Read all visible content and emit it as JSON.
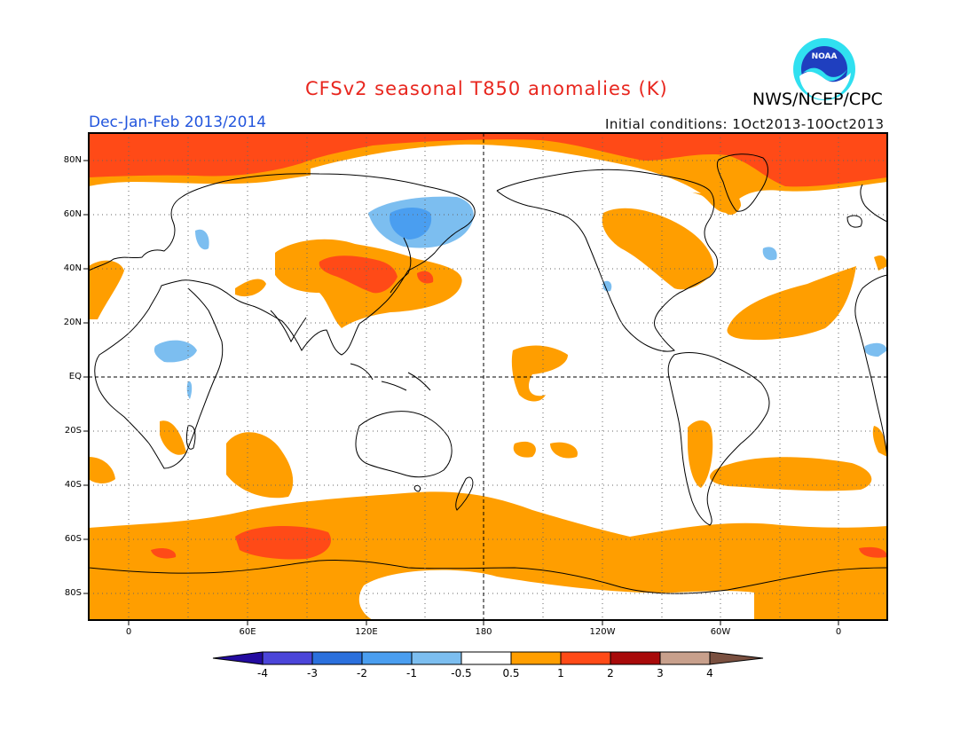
{
  "title": "CFSv2 seasonal T850 anomalies (K)",
  "season": "Dec-Jan-Feb 2013/2014",
  "initial_conditions": "Initial conditions: 1Oct2013-10Oct2013",
  "agency": "NWS/NCEP/CPC",
  "logo": {
    "text": "NOAA",
    "icon": "noaa-logo-icon",
    "colors": {
      "outer": "#30e0f0",
      "inner": "#1f3fbf",
      "bird": "#ffffff"
    }
  },
  "lat_labels": [
    "80N",
    "60N",
    "40N",
    "20N",
    "EQ",
    "20S",
    "40S",
    "60S",
    "80S"
  ],
  "lon_labels": [
    "0",
    "60E",
    "120E",
    "180",
    "120W",
    "60W",
    "0"
  ],
  "colorbar": {
    "tick_labels": [
      "-4",
      "-3",
      "-2",
      "-1",
      "-0.5",
      "0.5",
      "1",
      "2",
      "3",
      "4"
    ],
    "colors": [
      "#230ba0",
      "#4b45d9",
      "#2b70dd",
      "#4a9ef0",
      "#7cbef0",
      "#ffffff",
      "#ff9e00",
      "#ff4a17",
      "#a80a0a",
      "#c8a08c",
      "#7a5040"
    ]
  },
  "map_colors": {
    "warm1": "#ff9e00",
    "warm2": "#ff4a17",
    "warm3": "#e03310",
    "cool1": "#7cbef0",
    "cool2": "#4a9ef0",
    "land_line": "#000000",
    "grid": "#555555"
  }
}
